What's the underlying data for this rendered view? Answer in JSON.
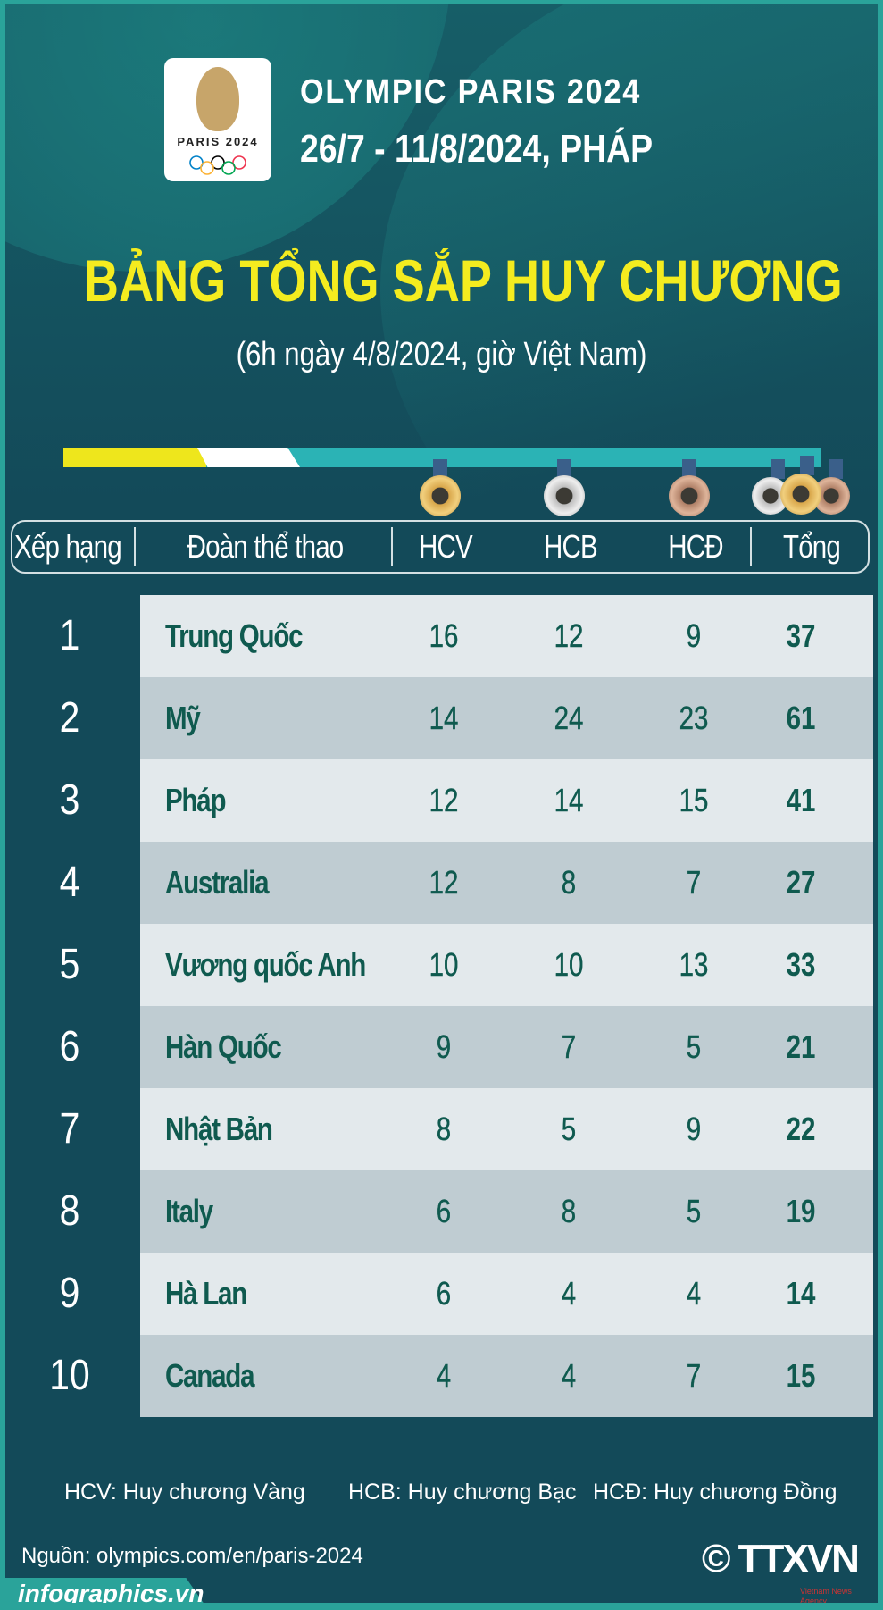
{
  "header": {
    "logo_text": "PARIS 2024",
    "event": "OLYMPIC PARIS 2024",
    "dates": "26/7 - 11/8/2024, PHÁP"
  },
  "title": "BẢNG TỔNG SẮP HUY CHƯƠNG",
  "subtitle": "(6h ngày 4/8/2024, giờ Việt Nam)",
  "colors": {
    "background": "#134a59",
    "accent_yellow": "#f4ec1f",
    "accent_teal": "#2bb3b5",
    "row_light": "#e3e9ec",
    "row_dark": "#bfccd2",
    "text_green": "#0f5a4f"
  },
  "table": {
    "columns": [
      "Xếp hạng",
      "Đoàn thể thao",
      "HCV",
      "HCB",
      "HCĐ",
      "Tổng"
    ],
    "rows": [
      {
        "rank": "1",
        "team": "Trung Quốc",
        "gold": "16",
        "silver": "12",
        "bronze": "9",
        "total": "37"
      },
      {
        "rank": "2",
        "team": "Mỹ",
        "gold": "14",
        "silver": "24",
        "bronze": "23",
        "total": "61"
      },
      {
        "rank": "3",
        "team": "Pháp",
        "gold": "12",
        "silver": "14",
        "bronze": "15",
        "total": "41"
      },
      {
        "rank": "4",
        "team": "Australia",
        "gold": "12",
        "silver": "8",
        "bronze": "7",
        "total": "27"
      },
      {
        "rank": "5",
        "team": "Vương quốc Anh",
        "gold": "10",
        "silver": "10",
        "bronze": "13",
        "total": "33"
      },
      {
        "rank": "6",
        "team": "Hàn Quốc",
        "gold": "9",
        "silver": "7",
        "bronze": "5",
        "total": "21"
      },
      {
        "rank": "7",
        "team": "Nhật Bản",
        "gold": "8",
        "silver": "5",
        "bronze": "9",
        "total": "22"
      },
      {
        "rank": "8",
        "team": "Italy",
        "gold": "6",
        "silver": "8",
        "bronze": "5",
        "total": "19"
      },
      {
        "rank": "9",
        "team": "Hà Lan",
        "gold": "6",
        "silver": "4",
        "bronze": "4",
        "total": "14"
      },
      {
        "rank": "10",
        "team": "Canada",
        "gold": "4",
        "silver": "4",
        "bronze": "7",
        "total": "15"
      }
    ]
  },
  "legend": [
    "HCV: Huy chương Vàng",
    "HCB: Huy chương Bạc",
    "HCĐ: Huy chương Đồng"
  ],
  "footer": {
    "source": "Nguồn: olympics.com/en/paris-2024",
    "site": "infographics.vn",
    "brand": "© TTXVN",
    "agency": "Vietnam News Agency"
  }
}
